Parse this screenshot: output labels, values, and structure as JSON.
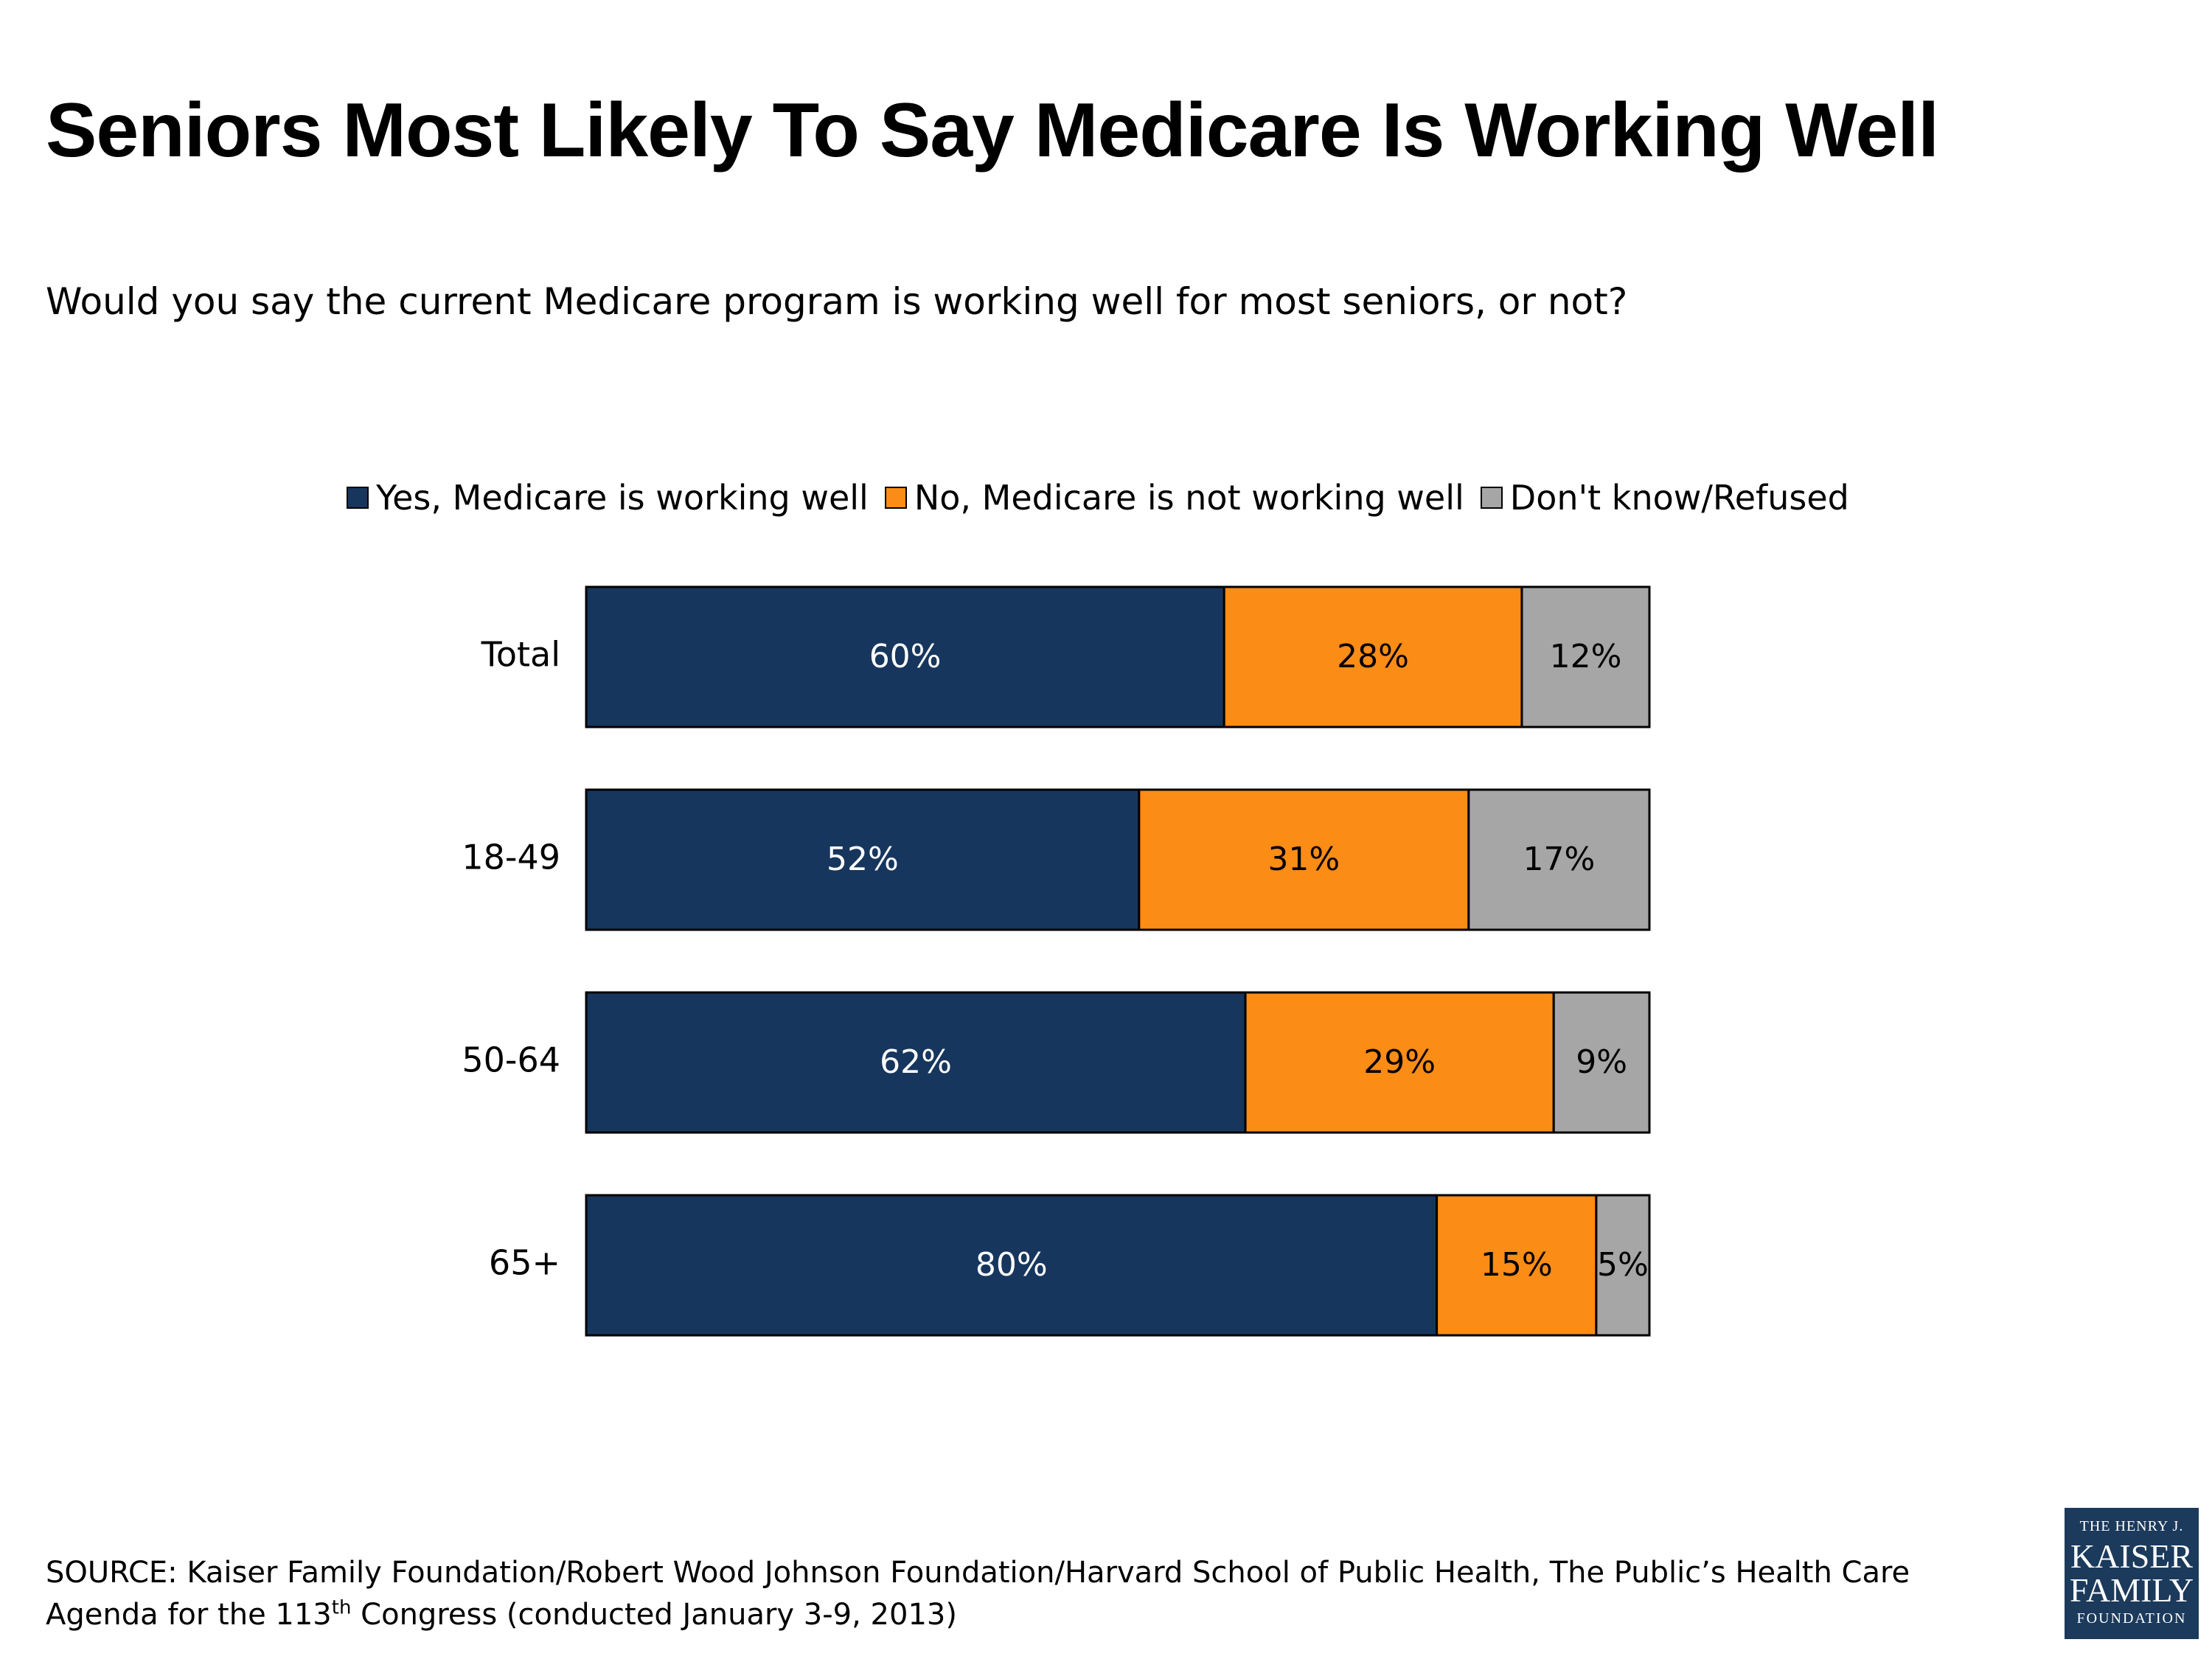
{
  "title": "Seniors Most Likely To Say Medicare Is Working Well",
  "subtitle": "Would you say the current Medicare program is working well for most seniors, or not?",
  "legend": [
    {
      "label": "Yes, Medicare is working well",
      "color": "#17365d"
    },
    {
      "label": "No, Medicare is not working well",
      "color": "#fb8c16"
    },
    {
      "label": "Don't know/Refused",
      "color": "#a6a6a6"
    }
  ],
  "chart_data": {
    "type": "bar",
    "orientation": "horizontal",
    "stacked": true,
    "categories": [
      "Total",
      "18-49",
      "50-64",
      "65+"
    ],
    "series": [
      {
        "name": "Yes, Medicare is working well",
        "color": "#17365d",
        "label_color": "#ffffff",
        "values": [
          60,
          52,
          62,
          80
        ],
        "labels": [
          "60%",
          "52%",
          "62%",
          "80%"
        ]
      },
      {
        "name": "No, Medicare is not working well",
        "color": "#fb8c16",
        "label_color": "#000000",
        "values": [
          28,
          31,
          29,
          15
        ],
        "labels": [
          "28%",
          "31%",
          "29%",
          "15%"
        ]
      },
      {
        "name": "Don't know/Refused",
        "color": "#a6a6a6",
        "label_color": "#000000",
        "values": [
          12,
          17,
          9,
          5
        ],
        "labels": [
          "12%",
          "17%",
          "9%",
          "5%"
        ]
      }
    ],
    "xlim": [
      0,
      100
    ],
    "grid": false,
    "legend_position": "top"
  },
  "source": {
    "line1": "SOURCE: Kaiser Family Foundation/Robert Wood Johnson Foundation/Harvard School of Public Health, The Public’s Health Care",
    "line2_before": "Agenda for the 113",
    "line2_sup": "th",
    "line2_after": " Congress (conducted January 3-9, 2013)"
  },
  "logo": {
    "line1": "THE HENRY J.",
    "line2": "KAISER",
    "line3": "FAMILY",
    "line4": "FOUNDATION"
  }
}
